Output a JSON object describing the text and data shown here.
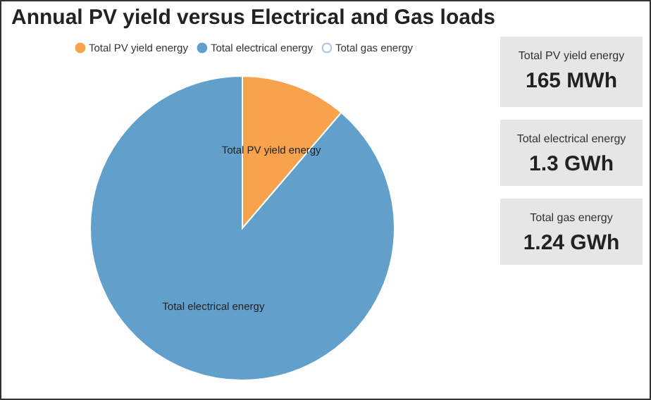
{
  "chart_data": [
    {
      "type": "pie",
      "title": "Annual PV yield versus Electrical and Gas loads",
      "categories": [
        "Total PV yield energy",
        "Total electrical energy",
        "Total gas energy"
      ],
      "values": [
        11.26,
        88.74,
        0
      ],
      "colors": [
        "#f9a24e",
        "#62a0cc",
        "#a9c4e6"
      ],
      "legend": "top"
    },
    {
      "type": "other",
      "categories": [
        "Total PV yield energy",
        "Total electrical energy",
        "Total gas energy"
      ],
      "value_labels": [
        "165 MWh",
        "1.3 GWh",
        "1.24 GWh"
      ]
    }
  ]
}
